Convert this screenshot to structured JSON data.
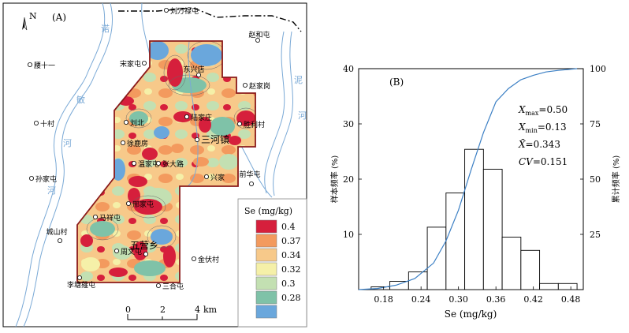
{
  "panel_a": {
    "label": "(A)",
    "north": "N",
    "legend": {
      "title": "Se (mg/kg)",
      "classes": [
        {
          "label": "0.4",
          "color": "#d61f3c"
        },
        {
          "label": "0.37",
          "color": "#f39a5e"
        },
        {
          "label": "0.34",
          "color": "#f7c98a"
        },
        {
          "label": "0.32",
          "color": "#f5f0a8"
        },
        {
          "label": "0.3",
          "color": "#c3e0b2"
        },
        {
          "label": "0.28",
          "color": "#7fc2a8"
        },
        {
          "label": "",
          "color": "#6aa7dc"
        }
      ]
    },
    "scalebar": {
      "ticks": [
        "0",
        "2",
        "4"
      ],
      "unit": "km"
    },
    "places": [
      {
        "name": "刘万禄屯"
      },
      {
        "name": "赵和屯"
      },
      {
        "name": "腰十一"
      },
      {
        "name": "宋家屯"
      },
      {
        "name": "东兴店"
      },
      {
        "name": "赵家岗"
      },
      {
        "name": "十村"
      },
      {
        "name": "刘北"
      },
      {
        "name": "陆家庄"
      },
      {
        "name": "胜利村"
      },
      {
        "name": "徐鹿房"
      },
      {
        "name": "三河镇"
      },
      {
        "name": "孙家屯"
      },
      {
        "name": "温家屯"
      },
      {
        "name": "张大路"
      },
      {
        "name": "前华屯"
      },
      {
        "name": "兴家"
      },
      {
        "name": "马祥屯"
      },
      {
        "name": "邢家屯"
      },
      {
        "name": "城山村"
      },
      {
        "name": "五营乡"
      },
      {
        "name": "周文屯"
      },
      {
        "name": "金伏村"
      },
      {
        "name": "李塘薤屯"
      },
      {
        "name": "三合屯"
      }
    ],
    "river_labels": [
      "诺",
      "敏",
      "河",
      "河",
      "泥",
      "河"
    ]
  },
  "chart_data": {
    "type": "bar",
    "panel_label": "(B)",
    "xlabel": "Se (mg/kg)",
    "ylabel": "样本频率 (%)",
    "y2label": "累计频率 (%)",
    "xlim": [
      0.14,
      0.5
    ],
    "ylim": [
      0,
      40
    ],
    "y2lim": [
      0,
      100
    ],
    "xticks": [
      "0.18",
      "0.24",
      "0.30",
      "0.36",
      "0.42",
      "0.48"
    ],
    "yticks": [
      "10",
      "20",
      "30",
      "40"
    ],
    "y2ticks": [
      "25",
      "50",
      "75",
      "100"
    ],
    "bins": [
      {
        "x0": 0.16,
        "x1": 0.19,
        "value": 0.5
      },
      {
        "x0": 0.19,
        "x1": 0.22,
        "value": 1.5
      },
      {
        "x0": 0.22,
        "x1": 0.25,
        "value": 3.2
      },
      {
        "x0": 0.25,
        "x1": 0.28,
        "value": 11.3
      },
      {
        "x0": 0.28,
        "x1": 0.31,
        "value": 17.5
      },
      {
        "x0": 0.31,
        "x1": 0.34,
        "value": 25.4
      },
      {
        "x0": 0.34,
        "x1": 0.37,
        "value": 21.8
      },
      {
        "x0": 0.37,
        "x1": 0.4,
        "value": 9.5
      },
      {
        "x0": 0.4,
        "x1": 0.43,
        "value": 7.1
      },
      {
        "x0": 0.43,
        "x1": 0.46,
        "value": 1.1
      },
      {
        "x0": 0.46,
        "x1": 0.49,
        "value": 1.1
      }
    ],
    "cumulative": {
      "x": [
        0.14,
        0.17,
        0.2,
        0.23,
        0.26,
        0.28,
        0.3,
        0.32,
        0.34,
        0.36,
        0.38,
        0.4,
        0.42,
        0.44,
        0.46,
        0.49
      ],
      "y": [
        0,
        0.5,
        2,
        5,
        12,
        22,
        36,
        54,
        71,
        85,
        91,
        95,
        97,
        98.5,
        99.2,
        100
      ],
      "color": "#3b7fc4"
    },
    "stats": [
      {
        "name": "X",
        "sub": "max",
        "value": "=0.50"
      },
      {
        "name": "X",
        "sub": "min",
        "value": "=0.13"
      },
      {
        "name": "X̄",
        "sub": "",
        "value": "=0.343"
      },
      {
        "name": "CV",
        "sub": "",
        "value": "=0.151"
      }
    ]
  }
}
